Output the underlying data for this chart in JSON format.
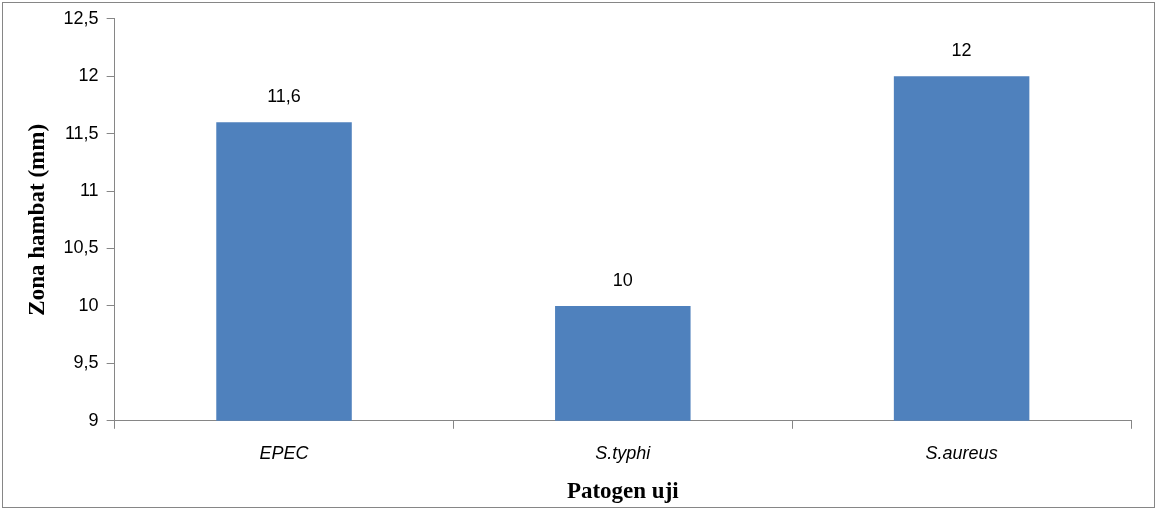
{
  "chart_data": {
    "type": "bar",
    "xlabel": "Patogen uji",
    "ylabel": "Zona hambat (mm)",
    "categories": [
      "EPEC",
      "S.typhi",
      "S.aureus"
    ],
    "values": [
      11.6,
      10,
      12
    ],
    "color": "#4f81bd",
    "value_labels": [
      "11,6",
      "10",
      "12"
    ],
    "ylim": [
      9,
      12.5
    ],
    "yticks": [
      9,
      {
        "value": 9.5,
        "label": "9,5"
      },
      10,
      {
        "value": 10.5,
        "label": "10,5"
      },
      11,
      {
        "value": 11.5,
        "label": "11,5"
      },
      12,
      {
        "value": 12.5,
        "label": "12,5"
      }
    ],
    "grid": false,
    "legend": false
  }
}
